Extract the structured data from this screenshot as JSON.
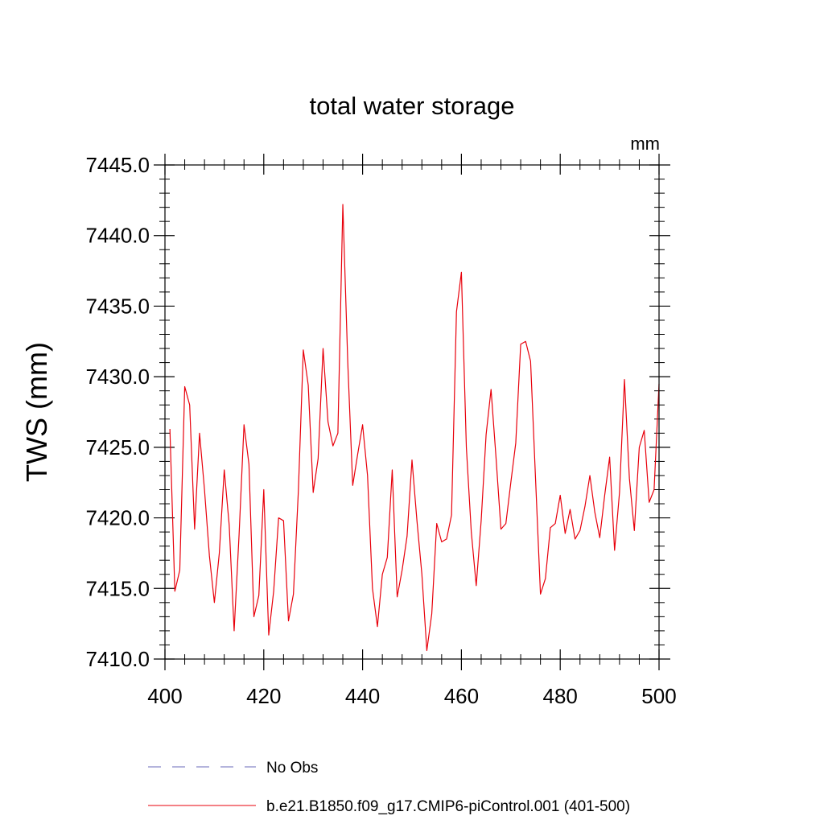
{
  "chart_data": {
    "type": "line",
    "title": "total water storage",
    "units_label": "mm",
    "xlabel": "",
    "ylabel": "TWS  (mm)",
    "xlim": [
      400,
      500
    ],
    "ylim": [
      7410,
      7445
    ],
    "x_ticks": [
      400,
      420,
      440,
      460,
      480,
      500
    ],
    "x_tick_labels": [
      "400",
      "420",
      "440",
      "460",
      "480",
      "500"
    ],
    "y_ticks": [
      7410,
      7415,
      7420,
      7425,
      7430,
      7435,
      7440,
      7445
    ],
    "y_tick_labels": [
      "7410.0",
      "7415.0",
      "7420.0",
      "7425.0",
      "7430.0",
      "7435.0",
      "7440.0",
      "7445.0"
    ],
    "legend": [
      {
        "label": "No Obs",
        "style": "dashed",
        "color": "#6a6ab8"
      },
      {
        "label": "b.e21.B1850.f09_g17.CMIP6-piControl.001 (401-500)",
        "style": "solid",
        "color": "#e8000b"
      }
    ],
    "series": [
      {
        "name": "b.e21.B1850.f09_g17.CMIP6-piControl.001 (401-500)",
        "color": "#e8000b",
        "x": [
          401,
          402,
          403,
          404,
          405,
          406,
          407,
          408,
          409,
          410,
          411,
          412,
          413,
          414,
          415,
          416,
          417,
          418,
          419,
          420,
          421,
          422,
          423,
          424,
          425,
          426,
          427,
          428,
          429,
          430,
          431,
          432,
          433,
          434,
          435,
          436,
          437,
          438,
          439,
          440,
          441,
          442,
          443,
          444,
          445,
          446,
          447,
          448,
          449,
          450,
          451,
          452,
          453,
          454,
          455,
          456,
          457,
          458,
          459,
          460,
          461,
          462,
          463,
          464,
          465,
          466,
          467,
          468,
          469,
          470,
          471,
          472,
          473,
          474,
          475,
          476,
          477,
          478,
          479,
          480,
          481,
          482,
          483,
          484,
          485,
          486,
          487,
          488,
          489,
          490,
          491,
          492,
          493,
          494,
          495,
          496,
          497,
          498,
          499,
          500
        ],
        "values": [
          7426.3,
          7414.8,
          7416.3,
          7429.3,
          7428.0,
          7419.2,
          7426.0,
          7422.0,
          7417.3,
          7414.0,
          7417.5,
          7423.4,
          7419.5,
          7412.0,
          7418.8,
          7426.6,
          7423.8,
          7413.0,
          7414.5,
          7422.0,
          7411.7,
          7414.8,
          7420.0,
          7419.8,
          7412.7,
          7414.6,
          7421.9,
          7431.9,
          7429.4,
          7421.8,
          7424.2,
          7432.0,
          7426.8,
          7425.1,
          7426.0,
          7442.2,
          7431.0,
          7422.3,
          7424.5,
          7426.6,
          7423.0,
          7415.0,
          7412.3,
          7416.0,
          7417.2,
          7423.4,
          7414.4,
          7416.3,
          7418.7,
          7424.1,
          7419.8,
          7416.0,
          7410.6,
          7413.2,
          7419.6,
          7418.3,
          7418.5,
          7420.2,
          7434.6,
          7437.4,
          7425.0,
          7419.0,
          7415.2,
          7419.8,
          7425.9,
          7429.1,
          7424.3,
          7419.2,
          7419.6,
          7422.5,
          7425.3,
          7432.3,
          7432.5,
          7431.1,
          7422.8,
          7414.6,
          7415.7,
          7419.3,
          7419.6,
          7421.6,
          7418.9,
          7420.6,
          7418.5,
          7419.1,
          7420.8,
          7423.0,
          7420.4,
          7418.6,
          7421.6,
          7424.3,
          7417.7,
          7421.8,
          7429.8,
          7422.8,
          7419.1,
          7425.0,
          7426.2,
          7421.1,
          7422.0,
          7429.5
        ]
      }
    ]
  }
}
